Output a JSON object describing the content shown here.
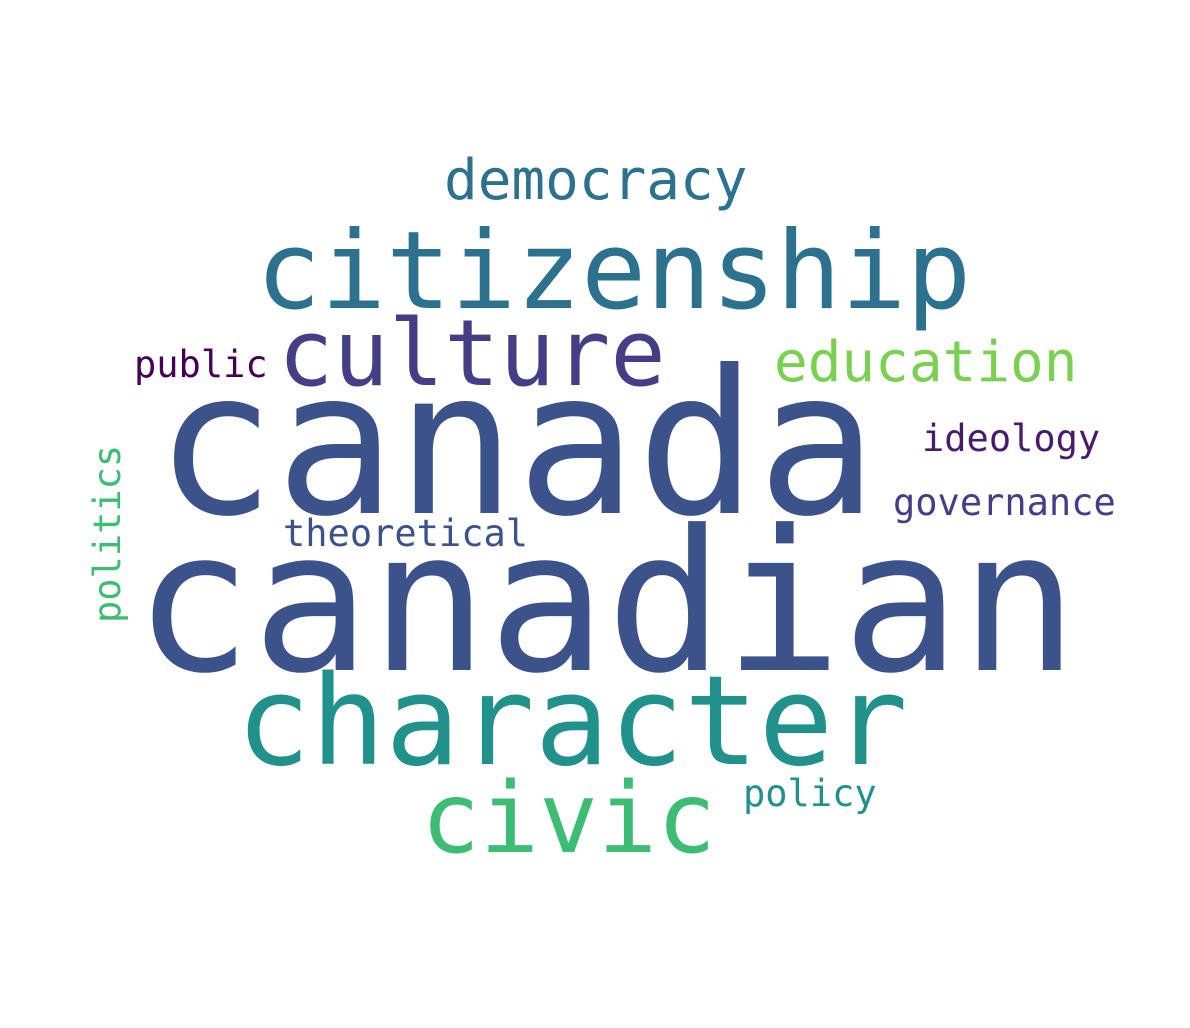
{
  "cloud": {
    "words": [
      {
        "text": "canadian",
        "color": "#3b528b",
        "orientation": "horizontal"
      },
      {
        "text": "canada",
        "color": "#3b528b",
        "orientation": "horizontal"
      },
      {
        "text": "citizenship",
        "color": "#2c728e",
        "orientation": "horizontal"
      },
      {
        "text": "character",
        "color": "#21918c",
        "orientation": "horizontal"
      },
      {
        "text": "culture",
        "color": "#433e85",
        "orientation": "horizontal"
      },
      {
        "text": "civic",
        "color": "#3dbc74",
        "orientation": "horizontal"
      },
      {
        "text": "democracy",
        "color": "#2c728e",
        "orientation": "horizontal"
      },
      {
        "text": "education",
        "color": "#7ad151",
        "orientation": "horizontal"
      },
      {
        "text": "public",
        "color": "#440154",
        "orientation": "horizontal"
      },
      {
        "text": "ideology",
        "color": "#481a6c",
        "orientation": "horizontal"
      },
      {
        "text": "governance",
        "color": "#433e85",
        "orientation": "horizontal"
      },
      {
        "text": "theoretical",
        "color": "#3b528b",
        "orientation": "horizontal"
      },
      {
        "text": "policy",
        "color": "#21918c",
        "orientation": "horizontal"
      },
      {
        "text": "politics",
        "color": "#3dbc74",
        "orientation": "vertical"
      }
    ]
  }
}
